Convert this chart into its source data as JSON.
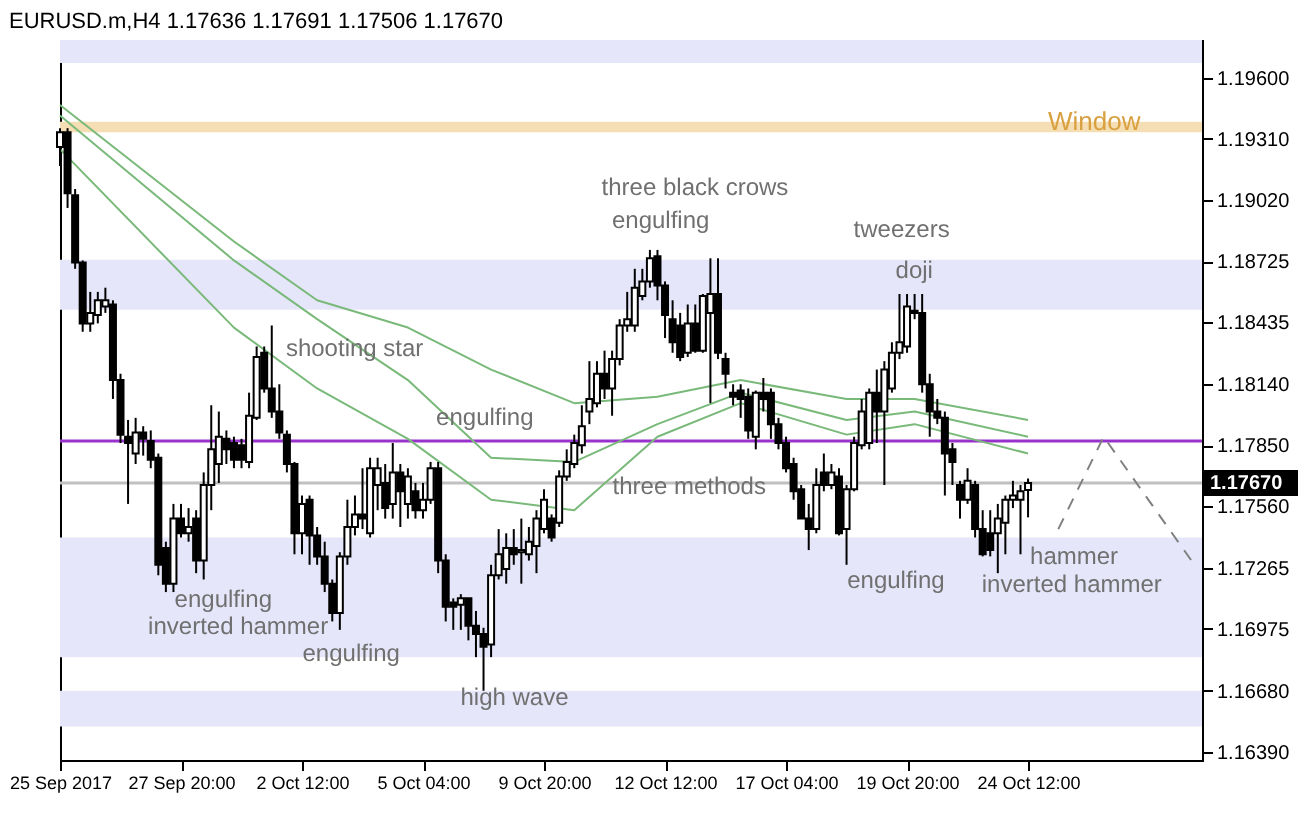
{
  "chart_data": {
    "type": "candlestick",
    "title": "EURUSD.m,H4  1.17636 1.17691 1.17506 1.17670",
    "categories": [
      "25 Sep 2017",
      null,
      null,
      null,
      null,
      null,
      null,
      null,
      null,
      null,
      null,
      null,
      null,
      null,
      null,
      null,
      "27 Sep 20:00",
      null,
      null,
      null,
      null,
      null,
      null,
      null,
      null,
      null,
      null,
      null,
      null,
      null,
      null,
      null,
      "2 Oct 12:00",
      null,
      null,
      null,
      null,
      null,
      null,
      null,
      null,
      null,
      null,
      null,
      null,
      null,
      null,
      null,
      "5 Oct 04:00",
      null,
      null,
      null,
      null,
      null,
      null,
      null,
      null,
      null,
      null,
      null,
      null,
      null,
      null,
      null,
      "9 Oct 20:00",
      null,
      null,
      null,
      null,
      null,
      null,
      null,
      null,
      null,
      null,
      null,
      null,
      null,
      null,
      null,
      "12 Oct 12:00",
      null,
      null,
      null,
      null,
      null,
      null,
      null,
      null,
      null,
      null,
      null,
      null,
      null,
      null,
      null,
      "17 Oct 04:00",
      null,
      null,
      null,
      null,
      null,
      null,
      null,
      null,
      null,
      null,
      null,
      null,
      null,
      null,
      null,
      "19 Oct 20:00",
      null,
      null,
      null,
      null,
      null,
      null,
      null,
      null,
      null,
      null,
      null,
      null,
      null,
      null,
      null,
      "24 Oct 12:00",
      null,
      null,
      null,
      null,
      null,
      null,
      null,
      null,
      null,
      null,
      null,
      null,
      null,
      null,
      null,
      null,
      null,
      null,
      null,
      null,
      null,
      null,
      null
    ],
    "ohlc": [
      [
        1.1927,
        1.1936,
        1.1918,
        1.1934
      ],
      [
        1.1934,
        1.1936,
        1.1898,
        1.1905
      ],
      [
        1.1904,
        1.1907,
        1.1869,
        1.1872
      ],
      [
        1.1872,
        1.1873,
        1.1839,
        1.1843
      ],
      [
        1.1843,
        1.1858,
        1.1839,
        1.1848
      ],
      [
        1.1847,
        1.1858,
        1.1843,
        1.1854
      ],
      [
        1.1851,
        1.186,
        1.1848,
        1.1854
      ],
      [
        1.1852,
        1.1854,
        1.1807,
        1.1816
      ],
      [
        1.1816,
        1.1819,
        1.1786,
        1.179
      ],
      [
        1.1789,
        1.1797,
        1.1757,
        1.1786
      ],
      [
        1.1781,
        1.1798,
        1.1776,
        1.1791
      ],
      [
        1.1791,
        1.1794,
        1.178,
        1.1788
      ],
      [
        1.1787,
        1.1792,
        1.1774,
        1.1778
      ],
      [
        1.1779,
        1.1781,
        1.1723,
        1.1728
      ],
      [
        1.1736,
        1.1739,
        1.1715,
        1.1719
      ],
      [
        1.1719,
        1.1757,
        1.1715,
        1.175
      ],
      [
        1.175,
        1.1757,
        1.1741,
        1.1743
      ],
      [
        1.1743,
        1.1755,
        1.1739,
        1.1746
      ],
      [
        1.175,
        1.1754,
        1.1724,
        1.173
      ],
      [
        1.173,
        1.1772,
        1.1721,
        1.1766
      ],
      [
        1.1766,
        1.1804,
        1.1754,
        1.1783
      ],
      [
        1.1776,
        1.1801,
        1.1767,
        1.1789
      ],
      [
        1.1788,
        1.1792,
        1.1776,
        1.1783
      ],
      [
        1.1786,
        1.1789,
        1.1774,
        1.1778
      ],
      [
        1.1785,
        1.1788,
        1.1774,
        1.1778
      ],
      [
        1.1777,
        1.181,
        1.1774,
        1.1799
      ],
      [
        1.1798,
        1.1832,
        1.1797,
        1.1827
      ],
      [
        1.1829,
        1.1832,
        1.181,
        1.1812
      ],
      [
        1.1812,
        1.1842,
        1.1798,
        1.1801
      ],
      [
        1.1801,
        1.1814,
        1.1788,
        1.1791
      ],
      [
        1.179,
        1.1792,
        1.1772,
        1.1776
      ],
      [
        1.1776,
        1.1777,
        1.1733,
        1.1743
      ],
      [
        1.1743,
        1.1761,
        1.1733,
        1.1757
      ],
      [
        1.1759,
        1.1761,
        1.1728,
        1.1742
      ],
      [
        1.1742,
        1.1746,
        1.1728,
        1.1732
      ],
      [
        1.1732,
        1.1739,
        1.1715,
        1.1719
      ],
      [
        1.1719,
        1.1721,
        1.1701,
        1.1705
      ],
      [
        1.1705,
        1.1734,
        1.1697,
        1.1732
      ],
      [
        1.1732,
        1.1759,
        1.1728,
        1.1746
      ],
      [
        1.1746,
        1.1761,
        1.1742,
        1.1752
      ],
      [
        1.1752,
        1.1774,
        1.1745,
        1.175
      ],
      [
        1.1743,
        1.1779,
        1.1741,
        1.1774
      ],
      [
        1.1766,
        1.1779,
        1.1754,
        1.1774
      ],
      [
        1.1767,
        1.1776,
        1.175,
        1.1755
      ],
      [
        1.1757,
        1.1786,
        1.175,
        1.1772
      ],
      [
        1.1772,
        1.1776,
        1.1746,
        1.1763
      ],
      [
        1.1757,
        1.1774,
        1.175,
        1.177
      ],
      [
        1.1763,
        1.1767,
        1.175,
        1.1754
      ],
      [
        1.1754,
        1.1767,
        1.175,
        1.1759
      ],
      [
        1.1759,
        1.1777,
        1.1757,
        1.1774
      ],
      [
        1.1774,
        1.1777,
        1.1724,
        1.173
      ],
      [
        1.173,
        1.1733,
        1.1701,
        1.1708
      ],
      [
        1.171,
        1.1712,
        1.1697,
        1.1708
      ],
      [
        1.1709,
        1.1714,
        1.1697,
        1.1712
      ],
      [
        1.1712,
        1.1712,
        1.1692,
        1.1699
      ],
      [
        1.1699,
        1.1706,
        1.1684,
        1.1695
      ],
      [
        1.1695,
        1.1698,
        1.1668,
        1.1689
      ],
      [
        1.169,
        1.1728,
        1.1684,
        1.1723
      ],
      [
        1.1723,
        1.1745,
        1.1721,
        1.1733
      ],
      [
        1.1726,
        1.1743,
        1.1719,
        1.1736
      ],
      [
        1.1736,
        1.1745,
        1.1728,
        1.1733
      ],
      [
        1.1734,
        1.175,
        1.1719,
        1.1735
      ],
      [
        1.1733,
        1.1746,
        1.173,
        1.1739
      ],
      [
        1.1737,
        1.1754,
        1.1724,
        1.175
      ],
      [
        1.1745,
        1.1764,
        1.1743,
        1.1759
      ],
      [
        1.175,
        1.1752,
        1.1739,
        1.1741
      ],
      [
        1.1748,
        1.1773,
        1.1746,
        1.177
      ],
      [
        1.177,
        1.1783,
        1.1768,
        1.1777
      ],
      [
        1.1776,
        1.179,
        1.1774,
        1.1786
      ],
      [
        1.1785,
        1.1804,
        1.1781,
        1.1794
      ],
      [
        1.1801,
        1.1825,
        1.1795,
        1.1807
      ],
      [
        1.1805,
        1.1825,
        1.1803,
        1.1819
      ],
      [
        1.1819,
        1.183,
        1.1807,
        1.1812
      ],
      [
        1.1812,
        1.183,
        1.1799,
        1.1826
      ],
      [
        1.1826,
        1.1845,
        1.1823,
        1.1842
      ],
      [
        1.1842,
        1.1858,
        1.1839,
        1.1845
      ],
      [
        1.1842,
        1.1869,
        1.1839,
        1.186
      ],
      [
        1.1856,
        1.1869,
        1.1854,
        1.1863
      ],
      [
        1.1863,
        1.1878,
        1.186,
        1.1874
      ],
      [
        1.1875,
        1.1878,
        1.1854,
        1.1861
      ],
      [
        1.1861,
        1.1863,
        1.1836,
        1.1847
      ],
      [
        1.1845,
        1.1854,
        1.1829,
        1.1834
      ],
      [
        1.1842,
        1.1848,
        1.1825,
        1.1827
      ],
      [
        1.1829,
        1.1852,
        1.1827,
        1.1843
      ],
      [
        1.1843,
        1.1852,
        1.1829,
        1.183
      ],
      [
        1.183,
        1.1857,
        1.1829,
        1.1856
      ],
      [
        1.1848,
        1.1874,
        1.1805,
        1.1857
      ],
      [
        1.1857,
        1.1874,
        1.1826,
        1.1829
      ],
      [
        1.1826,
        1.1829,
        1.1812,
        1.1819
      ],
      [
        1.181,
        1.1814,
        1.1804,
        1.1808
      ],
      [
        1.1811,
        1.1814,
        1.1798,
        1.1807
      ],
      [
        1.1808,
        1.1812,
        1.1788,
        1.1792
      ],
      [
        1.1789,
        1.1811,
        1.1783,
        1.181
      ],
      [
        1.181,
        1.1817,
        1.1801,
        1.1807
      ],
      [
        1.181,
        1.1812,
        1.1788,
        1.1795
      ],
      [
        1.1795,
        1.1798,
        1.1783,
        1.1786
      ],
      [
        1.1786,
        1.1789,
        1.1772,
        1.1774
      ],
      [
        1.1776,
        1.1779,
        1.1759,
        1.1763
      ],
      [
        1.1764,
        1.1766,
        1.175,
        1.175
      ],
      [
        1.175,
        1.1757,
        1.1735,
        1.1745
      ],
      [
        1.1745,
        1.1774,
        1.1743,
        1.1766
      ],
      [
        1.1772,
        1.1781,
        1.1763,
        1.1766
      ],
      [
        1.1766,
        1.1776,
        1.1764,
        1.1772
      ],
      [
        1.177,
        1.1774,
        1.1742,
        1.1743
      ],
      [
        1.1745,
        1.1766,
        1.1728,
        1.1764
      ],
      [
        1.1764,
        1.1789,
        1.1763,
        1.1786
      ],
      [
        1.1785,
        1.1807,
        1.1783,
        1.1801
      ],
      [
        1.1786,
        1.1812,
        1.1783,
        1.181
      ],
      [
        1.181,
        1.1821,
        1.1786,
        1.1801
      ],
      [
        1.1801,
        1.1825,
        1.1766,
        1.1821
      ],
      [
        1.1812,
        1.1834,
        1.181,
        1.1829
      ],
      [
        1.1829,
        1.1857,
        1.1826,
        1.1834
      ],
      [
        1.1832,
        1.1857,
        1.1829,
        1.1851
      ],
      [
        1.1849,
        1.1857,
        1.1845,
        1.1848
      ],
      [
        1.1848,
        1.1857,
        1.181,
        1.1814
      ],
      [
        1.1814,
        1.1819,
        1.1789,
        1.1801
      ],
      [
        1.1801,
        1.1807,
        1.1795,
        1.1798
      ],
      [
        1.1798,
        1.1801,
        1.1761,
        1.1781
      ],
      [
        1.1783,
        1.1786,
        1.1766,
        1.1777
      ],
      [
        1.1766,
        1.1768,
        1.175,
        1.1759
      ],
      [
        1.1759,
        1.1774,
        1.1757,
        1.1768
      ],
      [
        1.1766,
        1.1768,
        1.1741,
        1.1745
      ],
      [
        1.1745,
        1.1754,
        1.1732,
        1.1733
      ],
      [
        1.1743,
        1.1754,
        1.1732,
        1.1735
      ],
      [
        1.1743,
        1.1757,
        1.1724,
        1.175
      ],
      [
        1.1748,
        1.1761,
        1.1733,
        1.1759
      ],
      [
        1.1759,
        1.1768,
        1.1755,
        1.1761
      ],
      [
        1.1759,
        1.1766,
        1.1733,
        1.1763
      ],
      [
        1.17636,
        1.17691,
        1.17506,
        1.1767
      ],
      null,
      null,
      null,
      null,
      null,
      null,
      null,
      null,
      null,
      null,
      null,
      null,
      null,
      null,
      null,
      null,
      null,
      null,
      null,
      null,
      null,
      null,
      null
    ],
    "series": [
      {
        "type": "line",
        "color": "#79b979",
        "values": [
          1.1947,
          null,
          null,
          null,
          null,
          null,
          null,
          null,
          null,
          null,
          null,
          null,
          null,
          null,
          null,
          null,
          null,
          null,
          null,
          null,
          null,
          null,
          null,
          1.1882,
          null,
          null,
          null,
          null,
          null,
          null,
          null,
          null,
          null,
          null,
          1.1854,
          null,
          null,
          null,
          null,
          null,
          null,
          null,
          null,
          null,
          null,
          null,
          1.1841,
          null,
          null,
          null,
          null,
          null,
          null,
          null,
          null,
          null,
          null,
          1.1821,
          null,
          null,
          null,
          null,
          null,
          null,
          null,
          null,
          null,
          null,
          1.1805,
          null,
          null,
          null,
          null,
          null,
          null,
          null,
          null,
          null,
          null,
          1.1808,
          null,
          null,
          null,
          null,
          null,
          null,
          null,
          null,
          null,
          null,
          1.1816,
          null,
          null,
          null,
          null,
          null,
          null,
          null,
          null,
          null,
          null,
          null,
          null,
          null,
          1.1807,
          null,
          null,
          null,
          null,
          null,
          null,
          null,
          null,
          1.1807,
          null,
          null,
          null,
          null,
          null,
          null,
          null,
          null,
          null,
          null,
          null,
          null,
          null,
          null,
          1.1797,
          null,
          null,
          null,
          null,
          null,
          null,
          null,
          null,
          null,
          null,
          null,
          null,
          null,
          null,
          null,
          null,
          null,
          null,
          null,
          null,
          null,
          null,
          null
        ]
      },
      {
        "type": "line",
        "color": "#79b979",
        "values": [
          1.1942,
          null,
          null,
          null,
          null,
          null,
          null,
          null,
          null,
          null,
          null,
          null,
          null,
          null,
          null,
          null,
          null,
          null,
          null,
          null,
          null,
          null,
          null,
          1.1873,
          null,
          null,
          null,
          null,
          null,
          null,
          null,
          null,
          null,
          null,
          1.1845,
          null,
          null,
          null,
          null,
          null,
          null,
          null,
          null,
          null,
          null,
          null,
          1.1816,
          null,
          null,
          null,
          null,
          null,
          null,
          null,
          null,
          null,
          null,
          1.1779,
          null,
          null,
          null,
          null,
          null,
          null,
          null,
          null,
          null,
          null,
          1.1777,
          null,
          null,
          null,
          null,
          null,
          null,
          null,
          null,
          null,
          null,
          1.1795,
          null,
          null,
          null,
          null,
          null,
          null,
          null,
          null,
          null,
          null,
          1.181,
          null,
          null,
          null,
          null,
          null,
          null,
          null,
          null,
          null,
          null,
          null,
          null,
          null,
          1.1797,
          null,
          null,
          null,
          null,
          null,
          null,
          null,
          null,
          1.1801,
          null,
          null,
          null,
          null,
          null,
          null,
          null,
          null,
          null,
          null,
          null,
          null,
          null,
          null,
          1.1789,
          null,
          null,
          null,
          null,
          null,
          null,
          null,
          null,
          null,
          null,
          null,
          null,
          null,
          null,
          null,
          null,
          null,
          null,
          null,
          null,
          null,
          null,
          null
        ]
      },
      {
        "type": "line",
        "color": "#79b979",
        "values": [
          1.1926,
          null,
          null,
          null,
          null,
          null,
          null,
          null,
          null,
          null,
          null,
          null,
          null,
          null,
          null,
          null,
          null,
          null,
          null,
          null,
          null,
          null,
          null,
          1.1841,
          null,
          null,
          null,
          null,
          null,
          null,
          null,
          null,
          null,
          null,
          1.1812,
          null,
          null,
          null,
          null,
          null,
          null,
          null,
          null,
          null,
          null,
          null,
          1.1788,
          null,
          null,
          null,
          null,
          null,
          null,
          null,
          null,
          null,
          null,
          1.1759,
          null,
          null,
          null,
          null,
          null,
          null,
          null,
          null,
          null,
          null,
          1.1754,
          null,
          null,
          null,
          null,
          null,
          null,
          null,
          null,
          null,
          null,
          1.1789,
          null,
          null,
          null,
          null,
          null,
          null,
          null,
          null,
          null,
          null,
          1.1805,
          null,
          null,
          null,
          null,
          null,
          null,
          null,
          null,
          null,
          null,
          null,
          null,
          null,
          1.179,
          null,
          null,
          null,
          null,
          null,
          null,
          null,
          null,
          1.1795,
          null,
          null,
          null,
          null,
          null,
          null,
          null,
          null,
          null,
          null,
          null,
          null,
          null,
          null,
          1.1781,
          null,
          null,
          null,
          null,
          null,
          null,
          null,
          null,
          null,
          null,
          null,
          null,
          null,
          null,
          null,
          null,
          null,
          null,
          null,
          null,
          null,
          null,
          null
        ]
      },
      {
        "type": "line",
        "color": "#808080",
        "line_style": "dashed",
        "values": [
          null,
          null,
          null,
          null,
          null,
          null,
          null,
          null,
          null,
          null,
          null,
          null,
          null,
          null,
          null,
          null,
          null,
          null,
          null,
          null,
          null,
          null,
          null,
          null,
          null,
          null,
          null,
          null,
          null,
          null,
          null,
          null,
          null,
          null,
          null,
          null,
          null,
          null,
          null,
          null,
          null,
          null,
          null,
          null,
          null,
          null,
          null,
          null,
          null,
          null,
          null,
          null,
          null,
          null,
          null,
          null,
          null,
          null,
          null,
          null,
          null,
          null,
          null,
          null,
          null,
          null,
          null,
          null,
          null,
          null,
          null,
          null,
          null,
          null,
          null,
          null,
          null,
          null,
          null,
          null,
          null,
          null,
          null,
          null,
          null,
          null,
          null,
          null,
          null,
          null,
          null,
          null,
          null,
          null,
          null,
          null,
          null,
          null,
          null,
          null,
          null,
          null,
          null,
          null,
          null,
          null,
          null,
          null,
          null,
          null,
          null,
          null,
          null,
          null,
          null,
          null,
          null,
          null,
          null,
          null,
          null,
          null,
          null,
          null,
          null,
          null,
          null,
          null,
          null,
          null,
          null,
          null,
          1.1745,
          null,
          null,
          null,
          null,
          null,
          1.1789,
          null,
          null,
          null,
          null,
          null,
          null,
          null,
          null,
          null,
          null,
          null,
          1.1728,
          null
        ]
      }
    ],
    "ylim": [
      1.1635,
      1.1978
    ],
    "yticks": [
      {
        "value": 1.196,
        "label": "1.19600"
      },
      {
        "value": 1.1931,
        "label": "1.19310"
      },
      {
        "value": 1.1902,
        "label": "1.19020"
      },
      {
        "value": 1.18725,
        "label": "1.18725"
      },
      {
        "value": 1.18435,
        "label": "1.18435"
      },
      {
        "value": 1.1814,
        "label": "1.18140"
      },
      {
        "value": 1.1785,
        "label": "1.17850"
      },
      {
        "value": 1.1756,
        "label": "1.17560"
      },
      {
        "value": 1.17265,
        "label": "1.17265"
      },
      {
        "value": 1.16975,
        "label": "1.16975"
      },
      {
        "value": 1.1668,
        "label": "1.16680"
      },
      {
        "value": 1.1639,
        "label": "1.16390"
      }
    ],
    "bands": [
      {
        "axis": "y",
        "from": 1.1967,
        "to": 1.1978,
        "color": "#e6e6fa"
      },
      {
        "axis": "y",
        "from": 1.18495,
        "to": 1.18733,
        "color": "#e6e6fa"
      },
      {
        "axis": "y",
        "from": 1.1684,
        "to": 1.1741,
        "color": "#e6e6fa"
      },
      {
        "axis": "y",
        "from": 1.1651,
        "to": 1.1668,
        "color": "#e6e6fa"
      },
      {
        "axis": "y",
        "from": 1.1934,
        "to": 1.1939,
        "color": "#f5deb3",
        "label": "Window"
      }
    ],
    "ref_lines": [
      {
        "axis": "y",
        "value": 1.1787,
        "color": "#9932cc"
      },
      {
        "axis": "y",
        "value": 1.1767,
        "color": "#c0c0c0",
        "label": "1.17670"
      }
    ],
    "annotations": [
      "shooting star",
      "three black crows",
      "engulfing",
      "tweezers",
      "doji",
      "engulfing",
      "three methods",
      "engulfing",
      "inverted hammer",
      "engulfing",
      "high wave",
      "engulfing",
      "hammer",
      "inverted hammer"
    ]
  }
}
